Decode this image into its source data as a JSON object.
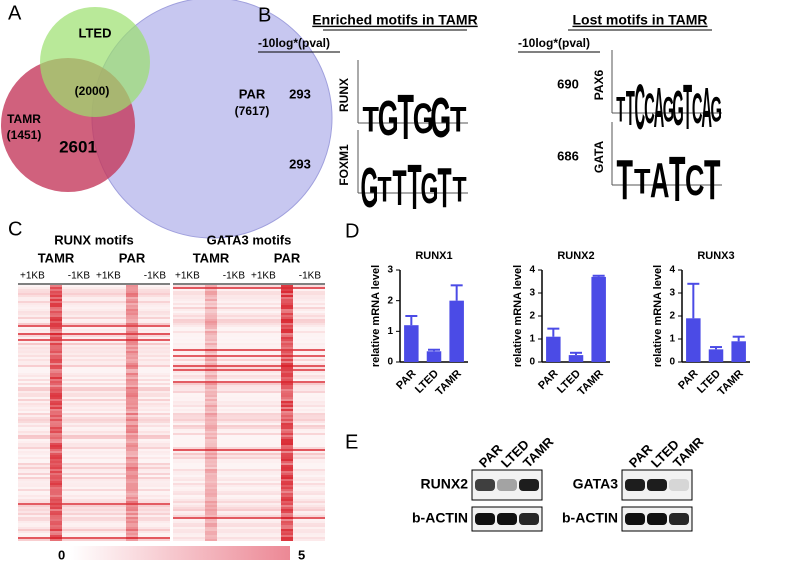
{
  "figure": {
    "panel_labels": [
      "A",
      "B",
      "C",
      "D",
      "E"
    ],
    "venn": {
      "lted": {
        "name": "LTED",
        "count": "(2000)"
      },
      "tamr": {
        "name": "TAMR",
        "count": "(1451)"
      },
      "par": {
        "name": "PAR",
        "count": "(7617)"
      },
      "overlap": "2601"
    },
    "motifs": {
      "score_header": "-10log*(pval)",
      "enriched": {
        "title": "Enriched motifs in TAMR",
        "items": [
          {
            "name": "RUNX",
            "score": 293,
            "letters": [
              "T",
              "G",
              "T",
              "G",
              "G",
              "T"
            ]
          },
          {
            "name": "FOXM1",
            "score": 293,
            "letters": [
              "G",
              "T",
              "T",
              "T",
              "G",
              "T",
              "T"
            ]
          }
        ]
      },
      "lost": {
        "title": "Lost motifs in TAMR",
        "items": [
          {
            "name": "PAX6",
            "score": 690,
            "letters": [
              "T",
              "T",
              "C",
              "C",
              "A",
              "G",
              "G",
              "T",
              "C",
              "A",
              "G"
            ]
          },
          {
            "name": "GATA",
            "score": 686,
            "letters": [
              "T",
              "T",
              "A",
              "T",
              "C",
              "T"
            ]
          }
        ]
      }
    },
    "heatmap": {
      "groups": [
        {
          "title": "RUNX motifs",
          "columns": [
            {
              "name": "TAMR",
              "start": "+1KB",
              "end": "-1KB"
            },
            {
              "name": "PAR",
              "start": "+1KB",
              "end": "-1KB"
            }
          ]
        },
        {
          "title": "GATA3 motifs",
          "columns": [
            {
              "name": "TAMR",
              "start": "+1KB",
              "end": "-1KB"
            },
            {
              "name": "PAR",
              "start": "+1KB",
              "end": "-1KB"
            }
          ]
        }
      ],
      "scale": {
        "min": 0,
        "max": 5
      }
    },
    "western": {
      "blots": [
        {
          "lanes": [
            "PAR",
            "LTED",
            "TAMR"
          ],
          "rows": [
            "RUNX2",
            "b-ACTIN"
          ]
        },
        {
          "lanes": [
            "PAR",
            "LTED",
            "TAMR"
          ],
          "rows": [
            "GATA3",
            "b-ACTIN"
          ]
        }
      ]
    }
  },
  "chart_data": [
    {
      "type": "bar",
      "title": "RUNX1",
      "y_label": "relative mRNA level",
      "categories": [
        "PAR",
        "LTED",
        "TAMR"
      ],
      "values": [
        1.2,
        0.35,
        2.0
      ],
      "errors": [
        0.3,
        0.05,
        0.5
      ],
      "color": "#4b4be6",
      "ylim": [
        0,
        3
      ],
      "yticks": [
        0,
        1,
        2,
        3
      ]
    },
    {
      "type": "bar",
      "title": "RUNX2",
      "y_label": "relative mRNA level",
      "categories": [
        "PAR",
        "LTED",
        "TAMR"
      ],
      "values": [
        1.1,
        0.3,
        3.7
      ],
      "errors": [
        0.35,
        0.1,
        0.05
      ],
      "color": "#4b4be6",
      "ylim": [
        0,
        4
      ],
      "yticks": [
        0,
        1,
        2,
        3,
        4
      ]
    },
    {
      "type": "bar",
      "title": "RUNX3",
      "y_label": "relative mRNA level",
      "categories": [
        "PAR",
        "LTED",
        "TAMR"
      ],
      "values": [
        1.9,
        0.55,
        0.9
      ],
      "errors": [
        1.5,
        0.1,
        0.2
      ],
      "color": "#4b4be6",
      "ylim": [
        0,
        4
      ],
      "yticks": [
        0,
        1,
        2,
        3,
        4
      ]
    }
  ]
}
